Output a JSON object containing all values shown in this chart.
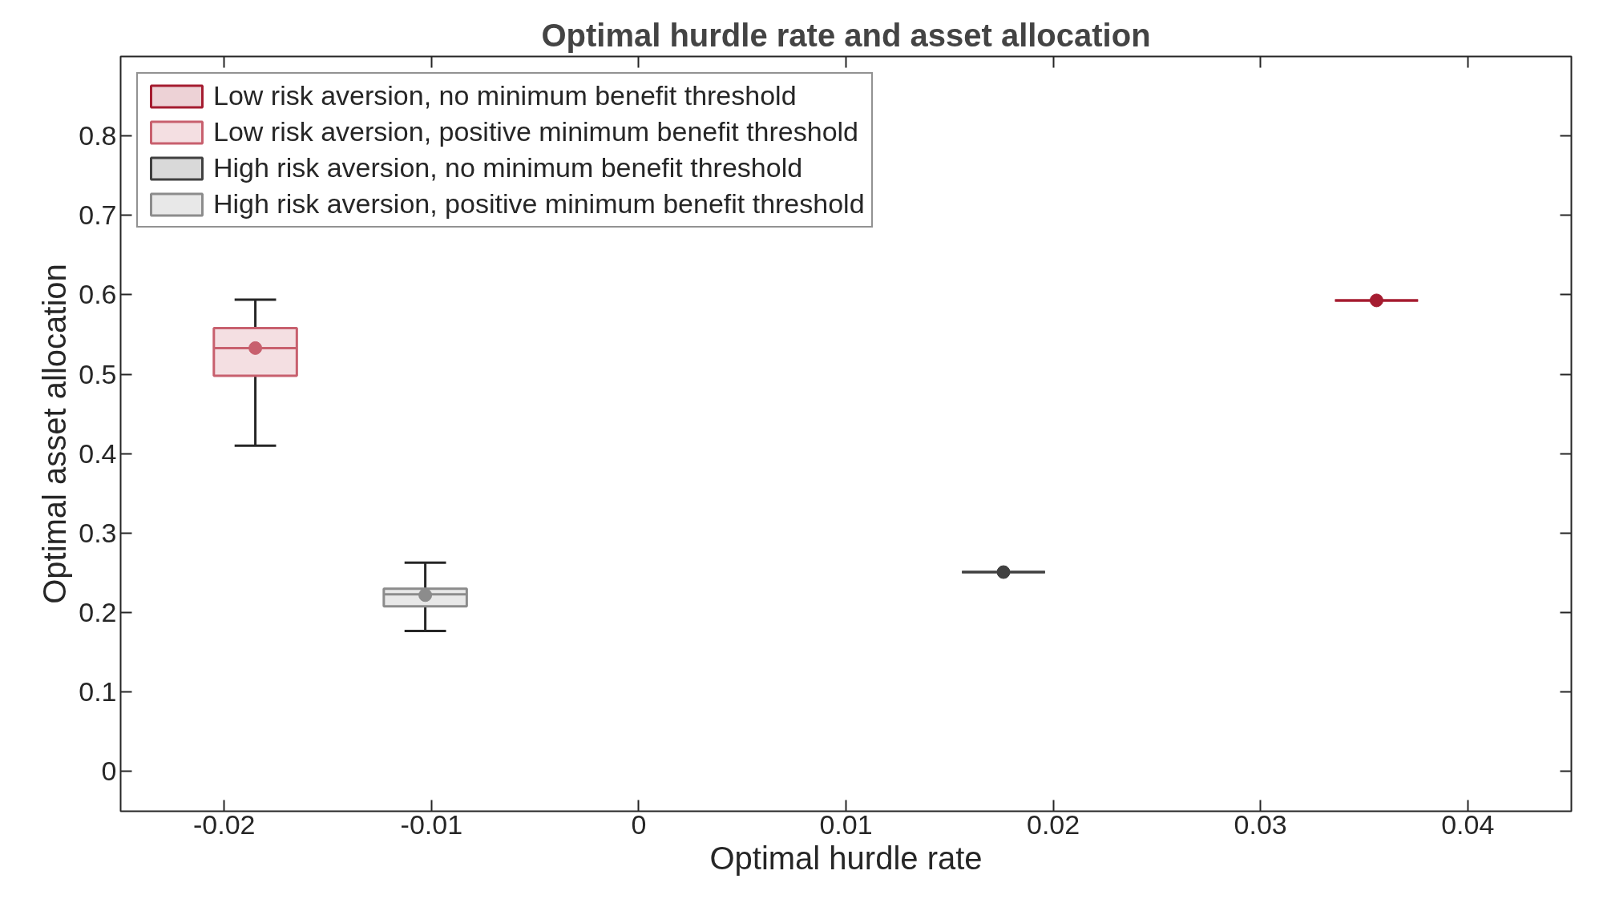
{
  "chart_data": {
    "type": "box",
    "title": "Optimal hurdle rate and asset allocation",
    "xlabel": "Optimal hurdle rate",
    "ylabel": "Optimal asset allocation",
    "xlim": [
      -0.025,
      0.045
    ],
    "xticks": [
      -0.02,
      -0.01,
      0,
      0.01,
      0.02,
      0.03,
      0.04
    ],
    "ylim": [
      -0.05,
      0.9
    ],
    "yticks": [
      0,
      0.1,
      0.2,
      0.3,
      0.4,
      0.5,
      0.6,
      0.7,
      0.8
    ],
    "grid": false,
    "legend": "top left",
    "marker": "circle",
    "series": [
      {
        "name": "Low risk aversion, no minimum benefit threshold",
        "color": "#a51c30",
        "x": [
          0.0356
        ],
        "boxes": [
          {
            "low": 0.593,
            "q1": 0.593,
            "median": 0.593,
            "q3": 0.593,
            "high": 0.593,
            "mean": 0.593
          }
        ]
      },
      {
        "name": "Low risk aversion, positive minimum benefit threshold",
        "color": "#c8606e",
        "x": [
          -0.0185
        ],
        "boxes": [
          {
            "low": 0.41,
            "q1": 0.498,
            "median": 0.533,
            "q3": 0.558,
            "high": 0.594,
            "mean": 0.533
          }
        ]
      },
      {
        "name": "High risk aversion, no minimum benefit threshold",
        "color": "#404040",
        "x": [
          0.0176
        ],
        "boxes": [
          {
            "low": 0.251,
            "q1": 0.251,
            "median": 0.251,
            "q3": 0.251,
            "high": 0.251,
            "mean": 0.251
          }
        ]
      },
      {
        "name": "High risk aversion, positive minimum benefit threshold",
        "color": "#8c8c8c",
        "x": [
          -0.0103
        ],
        "boxes": [
          {
            "low": 0.177,
            "q1": 0.208,
            "median": 0.223,
            "q3": 0.23,
            "high": 0.263,
            "mean": 0.222
          }
        ]
      }
    ]
  }
}
